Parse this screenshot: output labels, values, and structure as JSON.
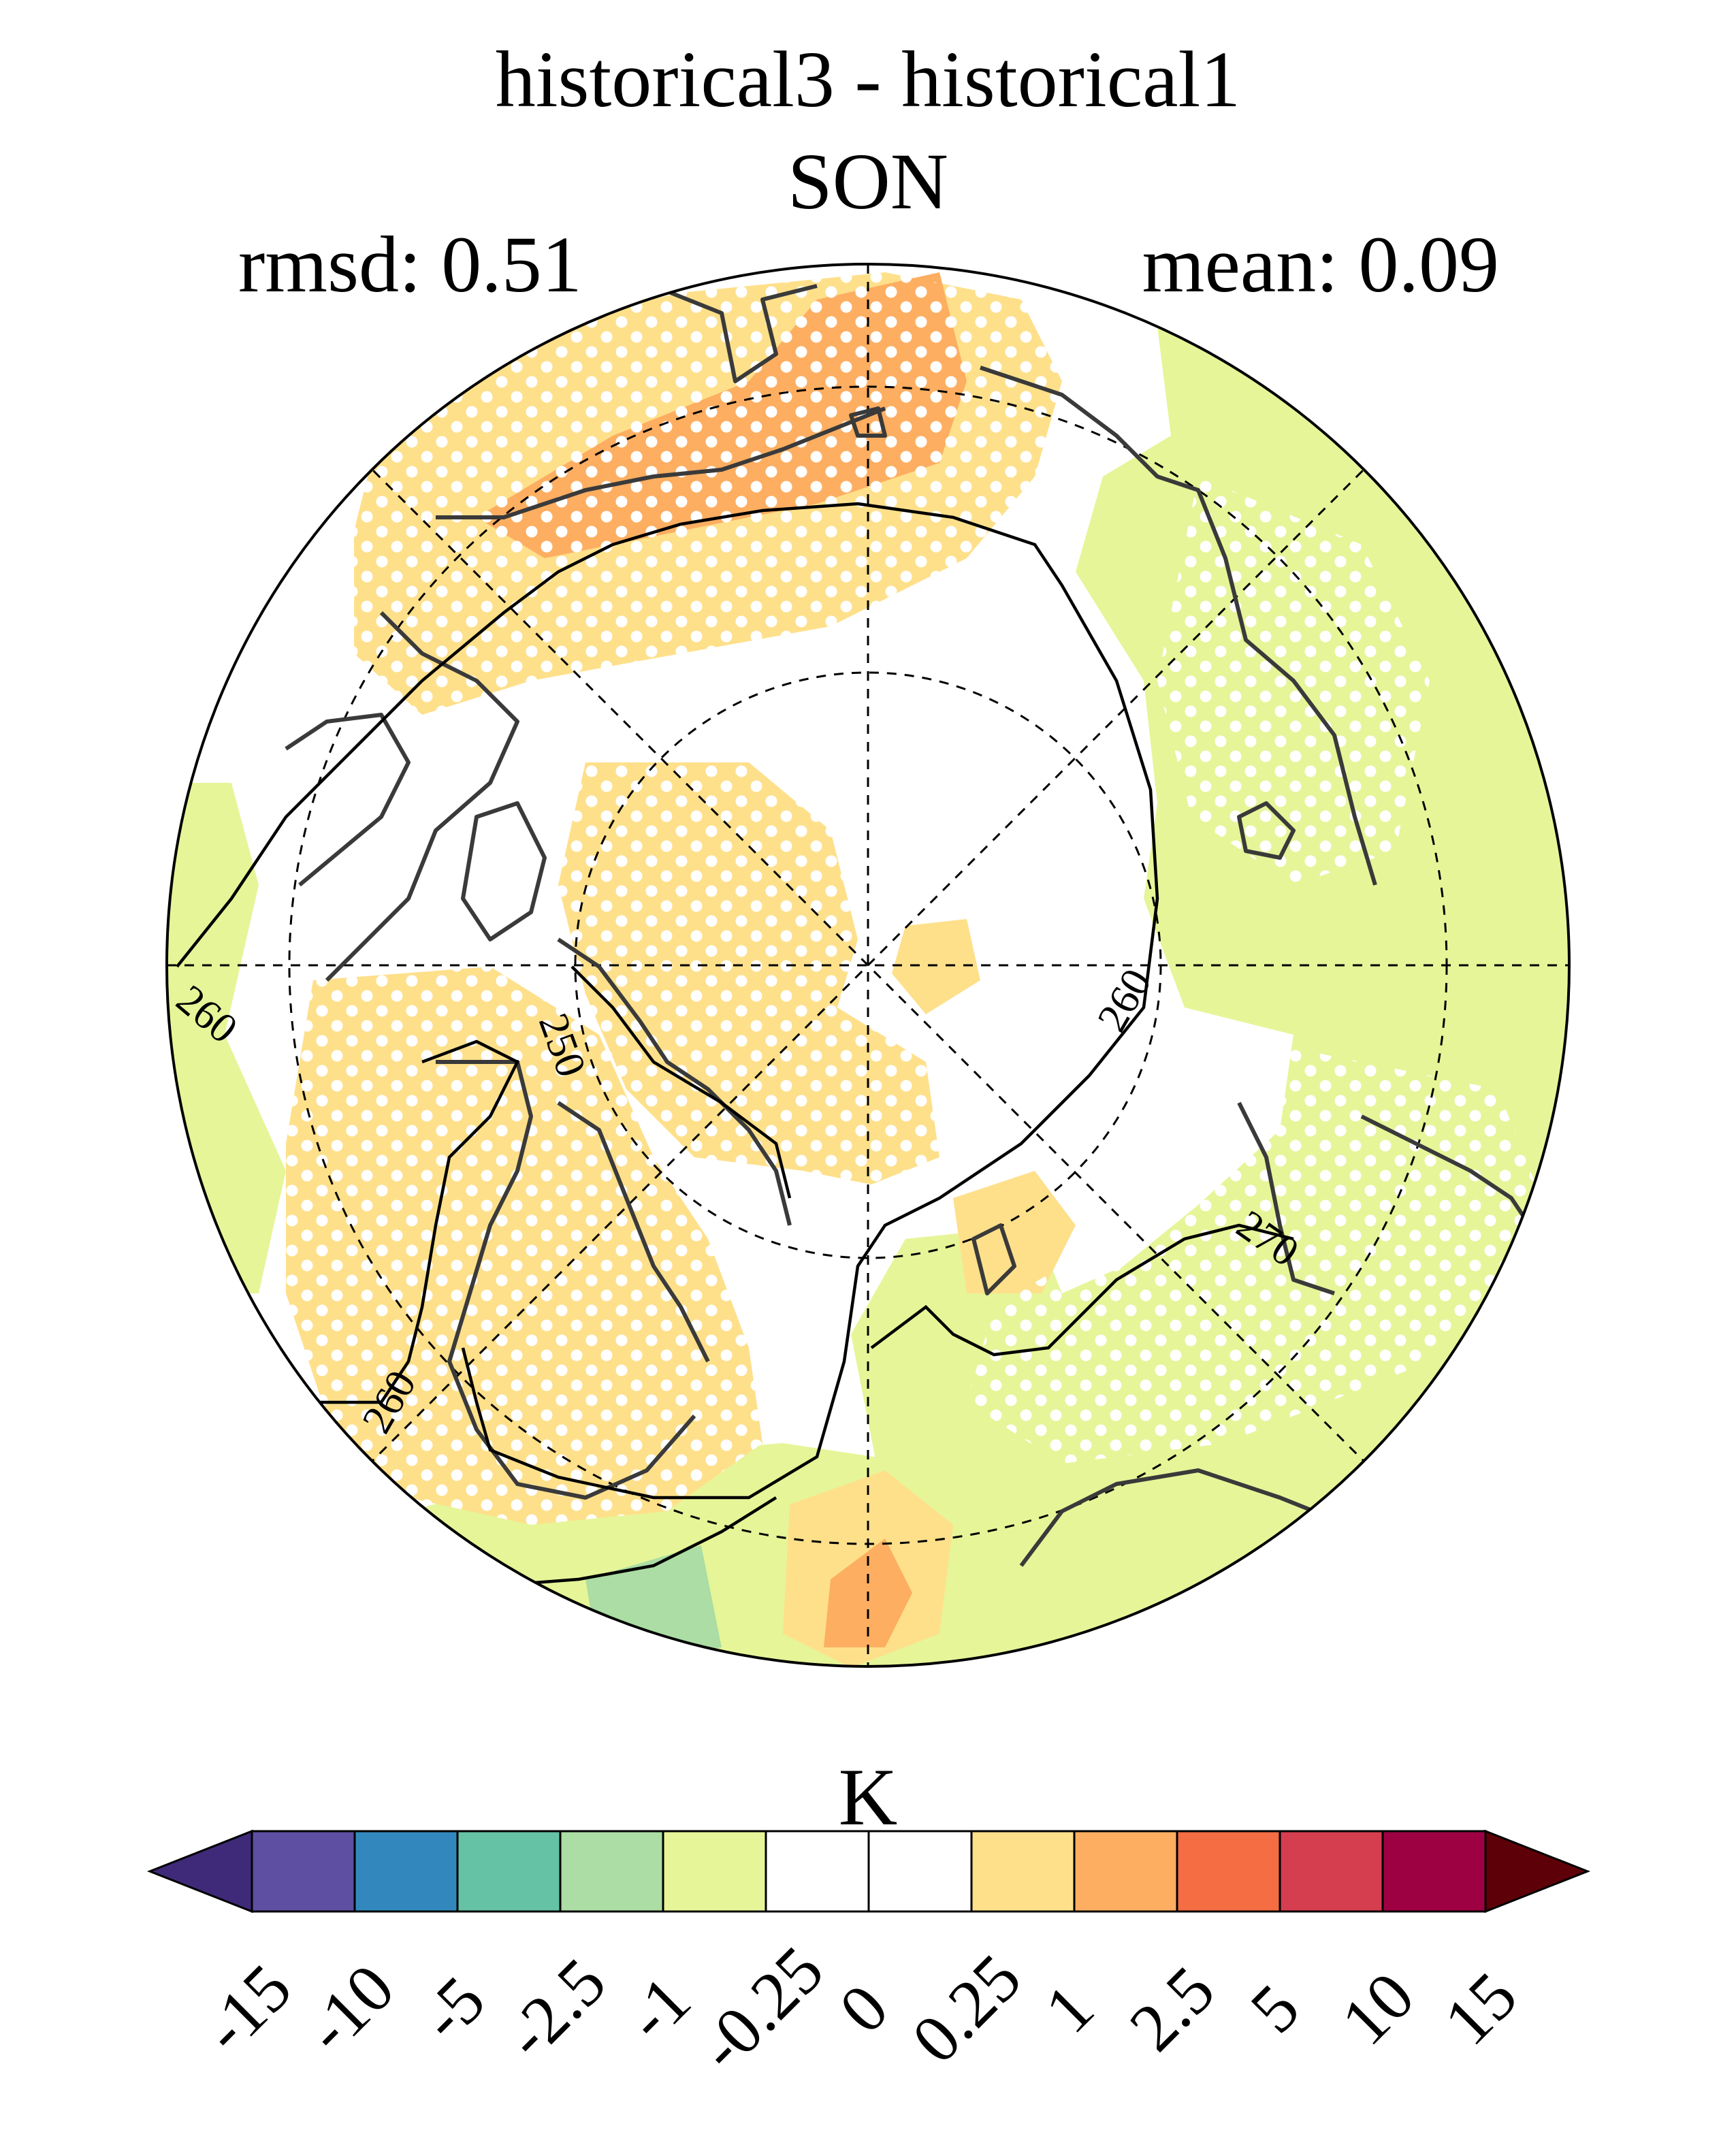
{
  "figure": {
    "title_line1": "historical3 - historical1",
    "title_line2": "SON",
    "rmsd_label": "rmsd: 0.51",
    "mean_label": "mean: 0.09"
  },
  "map": {
    "projection": "north polar stereographic",
    "contour_labels": [
      "260",
      "250",
      "260",
      "270",
      "260"
    ],
    "stippling": "white dots mark significant regions"
  },
  "colorbar": {
    "unit": "K",
    "ticks": [
      "-15",
      "-10",
      "-5",
      "-2.5",
      "-1",
      "-0.25",
      "0",
      "0.25",
      "1",
      "2.5",
      "5",
      "10",
      "15"
    ],
    "colors": [
      "#3f2a7a",
      "#5e4fa2",
      "#3288bd",
      "#66c2a5",
      "#abdda4",
      "#e6f598",
      "#ffffff",
      "#ffffff",
      "#fee08b",
      "#fdae61",
      "#f46d43",
      "#d53e4f",
      "#9e0142",
      "#5e0008"
    ]
  },
  "colors": {
    "pale_orange": "#fee08b",
    "orange": "#fdae61",
    "light_green": "#e6f598",
    "green": "#abdda4",
    "teal": "#66c2a5"
  }
}
